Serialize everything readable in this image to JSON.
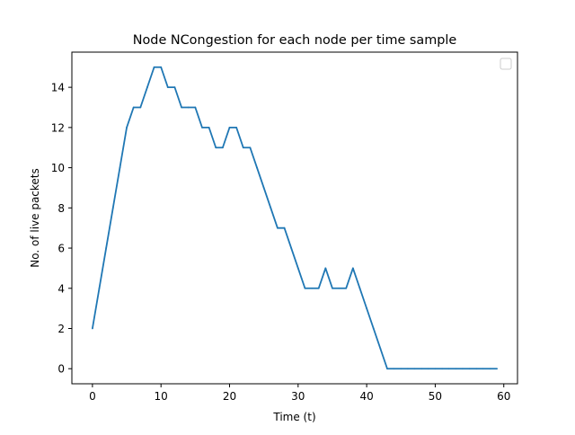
{
  "chart_data": {
    "type": "line",
    "title": "Node NCongestion for each node per time sample",
    "xlabel": "Time (t)",
    "ylabel": "No. of live packets",
    "xlim": [
      -3,
      62
    ],
    "ylim": [
      -0.75,
      15.75
    ],
    "xticks": [
      0,
      10,
      20,
      30,
      40,
      50,
      60
    ],
    "yticks": [
      0,
      2,
      4,
      6,
      8,
      10,
      12,
      14
    ],
    "grid": false,
    "legend": {
      "placement": "top-right",
      "entries": []
    },
    "series": [
      {
        "color": "#1f77b4",
        "x": [
          0,
          1,
          2,
          3,
          4,
          5,
          6,
          7,
          8,
          9,
          10,
          11,
          12,
          13,
          14,
          15,
          16,
          17,
          18,
          19,
          20,
          21,
          22,
          23,
          24,
          25,
          26,
          27,
          28,
          29,
          30,
          31,
          32,
          33,
          34,
          35,
          36,
          37,
          38,
          39,
          40,
          41,
          42,
          43,
          44,
          45,
          46,
          47,
          48,
          49,
          50,
          51,
          52,
          53,
          54,
          55,
          56,
          57,
          58,
          59
        ],
        "y": [
          2,
          4,
          6,
          8,
          10,
          12,
          13,
          13,
          14,
          15,
          15,
          14,
          14,
          13,
          13,
          13,
          12,
          12,
          11,
          11,
          12,
          12,
          11,
          11,
          10,
          9,
          8,
          7,
          7,
          6,
          5,
          4,
          4,
          4,
          5,
          4,
          4,
          4,
          5,
          4,
          3,
          2,
          1,
          0,
          0,
          0,
          0,
          0,
          0,
          0,
          0,
          0,
          0,
          0,
          0,
          0,
          0,
          0,
          0,
          0
        ]
      }
    ]
  }
}
